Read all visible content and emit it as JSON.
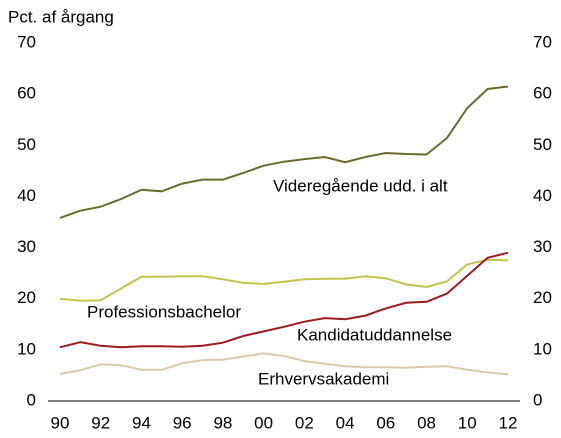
{
  "chart_data": {
    "type": "line",
    "y_label": "Pct. af årgang",
    "categories": [
      "90",
      null,
      "92",
      null,
      "94",
      null,
      "96",
      null,
      "98",
      null,
      "00",
      null,
      "02",
      null,
      "04",
      null,
      "06",
      null,
      "08",
      null,
      "10",
      null,
      "12"
    ],
    "series": [
      {
        "name": "Videregående udd. i alt",
        "color": "#6b6a2e",
        "values": [
          35.8,
          37.2,
          38,
          39.5,
          41.3,
          41,
          42.5,
          43.3,
          43.3,
          44.6,
          46,
          46.8,
          47.3,
          47.7,
          46.7,
          47.7,
          48.5,
          48.3,
          48.2,
          51.4,
          57.3,
          61,
          61.5
        ]
      },
      {
        "name": "Professionsbachelor",
        "color": "#c3c24a",
        "values": [
          20,
          19.6,
          19.7,
          22,
          24.3,
          24.3,
          24.4,
          24.4,
          23.8,
          23.1,
          22.9,
          23.3,
          23.8,
          23.9,
          23.9,
          24.4,
          24,
          22.8,
          22.3,
          23.4,
          26.7,
          27.6,
          27.5
        ]
      },
      {
        "name": "Kandidatuddannelse",
        "color": "#9b1b1e",
        "values": [
          10.5,
          11.5,
          10.8,
          10.5,
          10.7,
          10.7,
          10.6,
          10.8,
          11.4,
          12.7,
          13.6,
          14.5,
          15.5,
          16.2,
          16,
          16.7,
          18.1,
          19.2,
          19.4,
          21,
          24.5,
          28,
          29
        ]
      },
      {
        "name": "Erhvervsakademi",
        "color": "#d9c9a8",
        "values": [
          5.3,
          6,
          7.2,
          7,
          6.1,
          6.1,
          7.4,
          8,
          8.1,
          8.7,
          9.3,
          8.8,
          7.8,
          7.3,
          6.8,
          6.6,
          6.6,
          6.5,
          6.7,
          6.8,
          6.1,
          5.6,
          5.2
        ]
      }
    ],
    "ylim": [
      0,
      70
    ],
    "yticks": [
      0,
      10,
      20,
      30,
      40,
      50,
      60,
      70
    ],
    "y2lim": [
      0,
      70
    ],
    "y2ticks": [
      0,
      10,
      20,
      30,
      40,
      50,
      60,
      70
    ]
  }
}
